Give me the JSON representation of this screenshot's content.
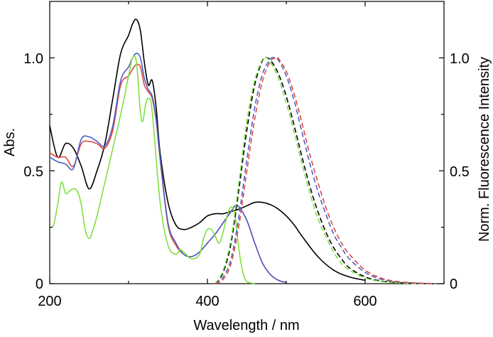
{
  "chart_data": {
    "type": "line",
    "title": "",
    "xlabel": "Wavelength / nm",
    "ylabel_left": "Abs.",
    "ylabel_right": "Norm. Fluorescence Intensity",
    "xlim": [
      200,
      700
    ],
    "ylim_left": [
      0,
      1.25
    ],
    "ylim_right": [
      0,
      1.25
    ],
    "x_ticks": [
      200,
      400,
      600
    ],
    "x_tick_labels": [
      "200",
      "400",
      "600"
    ],
    "y_left_ticks": [
      0,
      0.5,
      1.0
    ],
    "y_left_tick_labels": [
      "0",
      "0.5",
      "1.0"
    ],
    "y_right_ticks": [
      0,
      0.5,
      1.0
    ],
    "y_right_tick_labels": [
      "0",
      "0.5",
      "1.0"
    ],
    "series": [
      {
        "name": "absorption-black",
        "axis": "left",
        "color": "#000000",
        "dash": "solid",
        "x": [
          200,
          210,
          220,
          230,
          240,
          250,
          260,
          270,
          280,
          290,
          300,
          305,
          310,
          315,
          320,
          325,
          330,
          335,
          340,
          350,
          360,
          370,
          380,
          390,
          400,
          410,
          420,
          430,
          440,
          450,
          460,
          470,
          480,
          490,
          500,
          510,
          520,
          540,
          560,
          580,
          600
        ],
        "values": [
          0.7,
          0.56,
          0.62,
          0.6,
          0.52,
          0.42,
          0.5,
          0.62,
          0.82,
          1.02,
          1.1,
          1.15,
          1.17,
          1.12,
          0.98,
          0.88,
          0.9,
          0.78,
          0.58,
          0.36,
          0.26,
          0.24,
          0.25,
          0.27,
          0.3,
          0.31,
          0.31,
          0.32,
          0.33,
          0.345,
          0.36,
          0.36,
          0.35,
          0.33,
          0.3,
          0.26,
          0.21,
          0.12,
          0.06,
          0.03,
          0.015
        ]
      },
      {
        "name": "absorption-red",
        "axis": "left",
        "color": "#e0463a",
        "dash": "solid",
        "x": [
          200,
          210,
          220,
          230,
          240,
          250,
          260,
          270,
          280,
          290,
          300,
          305,
          310,
          315,
          320,
          325,
          330,
          335,
          340,
          350,
          360,
          370,
          380,
          390,
          400,
          410,
          420,
          430,
          435,
          440,
          450,
          460,
          470,
          480,
          490,
          500
        ],
        "values": [
          0.58,
          0.56,
          0.56,
          0.52,
          0.62,
          0.63,
          0.62,
          0.6,
          0.68,
          0.88,
          0.92,
          0.95,
          0.97,
          0.96,
          0.88,
          0.85,
          0.82,
          0.72,
          0.55,
          0.26,
          0.17,
          0.13,
          0.12,
          0.14,
          0.18,
          0.22,
          0.27,
          0.32,
          0.345,
          0.34,
          0.28,
          0.18,
          0.09,
          0.04,
          0.015,
          0.005
        ]
      },
      {
        "name": "absorption-blue",
        "axis": "left",
        "color": "#4a5fc8",
        "dash": "solid",
        "x": [
          200,
          210,
          220,
          230,
          240,
          250,
          260,
          270,
          280,
          290,
          300,
          305,
          310,
          315,
          320,
          325,
          330,
          335,
          340,
          350,
          360,
          370,
          380,
          390,
          400,
          410,
          420,
          430,
          435,
          440,
          450,
          460,
          470,
          480,
          490,
          500
        ],
        "values": [
          0.56,
          0.54,
          0.53,
          0.51,
          0.64,
          0.65,
          0.63,
          0.61,
          0.7,
          0.9,
          0.96,
          1.0,
          1.02,
          1.0,
          0.91,
          0.86,
          0.83,
          0.73,
          0.56,
          0.27,
          0.18,
          0.13,
          0.12,
          0.14,
          0.18,
          0.22,
          0.27,
          0.32,
          0.345,
          0.34,
          0.28,
          0.18,
          0.09,
          0.04,
          0.015,
          0.005
        ]
      },
      {
        "name": "absorption-green",
        "axis": "left",
        "color": "#7ee040",
        "dash": "solid",
        "x": [
          200,
          205,
          210,
          215,
          220,
          225,
          230,
          235,
          240,
          245,
          250,
          255,
          260,
          270,
          280,
          290,
          300,
          305,
          310,
          315,
          318,
          322,
          326,
          330,
          340,
          350,
          360,
          365,
          370,
          380,
          390,
          395,
          400,
          405,
          410,
          415,
          420,
          425,
          430,
          435,
          440,
          445,
          450,
          460
        ],
        "values": [
          0.25,
          0.26,
          0.35,
          0.45,
          0.4,
          0.41,
          0.42,
          0.41,
          0.35,
          0.24,
          0.2,
          0.24,
          0.3,
          0.45,
          0.6,
          0.75,
          0.92,
          1.0,
          0.98,
          0.76,
          0.72,
          0.8,
          0.82,
          0.76,
          0.36,
          0.17,
          0.13,
          0.15,
          0.14,
          0.11,
          0.13,
          0.2,
          0.24,
          0.24,
          0.21,
          0.18,
          0.23,
          0.3,
          0.34,
          0.3,
          0.15,
          0.05,
          0.01,
          0.0
        ]
      },
      {
        "name": "fluorescence-black",
        "axis": "right",
        "color": "#000000",
        "dash": "dashed",
        "x": [
          410,
          420,
          430,
          440,
          450,
          460,
          470,
          475,
          480,
          490,
          500,
          510,
          520,
          530,
          540,
          550,
          560,
          570,
          580,
          600,
          620,
          640,
          660,
          680,
          690
        ],
        "values": [
          0.0,
          0.05,
          0.18,
          0.42,
          0.68,
          0.88,
          0.99,
          1.0,
          0.99,
          0.93,
          0.83,
          0.7,
          0.56,
          0.43,
          0.32,
          0.23,
          0.16,
          0.11,
          0.07,
          0.03,
          0.012,
          0.005,
          0.002,
          0.0,
          0.0
        ]
      },
      {
        "name": "fluorescence-green",
        "axis": "right",
        "color": "#7ee040",
        "dash": "dashed",
        "x": [
          410,
          420,
          430,
          440,
          450,
          460,
          470,
          475,
          480,
          490,
          500,
          510,
          520,
          530,
          540,
          550,
          560,
          570,
          580,
          600,
          620,
          640,
          660,
          680,
          690
        ],
        "values": [
          0.0,
          0.06,
          0.2,
          0.45,
          0.72,
          0.9,
          0.995,
          1.0,
          0.98,
          0.91,
          0.8,
          0.67,
          0.53,
          0.4,
          0.29,
          0.21,
          0.14,
          0.09,
          0.06,
          0.025,
          0.01,
          0.004,
          0.001,
          0.0,
          0.0
        ]
      },
      {
        "name": "fluorescence-blue",
        "axis": "right",
        "color": "#4a5fc8",
        "dash": "dashed",
        "x": [
          410,
          420,
          430,
          440,
          450,
          460,
          470,
          480,
          485,
          490,
          500,
          510,
          520,
          530,
          540,
          550,
          560,
          570,
          580,
          600,
          620,
          640,
          660,
          680,
          690
        ],
        "values": [
          0.0,
          0.03,
          0.11,
          0.3,
          0.55,
          0.78,
          0.93,
          0.995,
          1.0,
          0.99,
          0.92,
          0.81,
          0.67,
          0.53,
          0.41,
          0.31,
          0.22,
          0.16,
          0.11,
          0.05,
          0.02,
          0.008,
          0.003,
          0.001,
          0.0
        ]
      },
      {
        "name": "fluorescence-red",
        "axis": "right",
        "color": "#e0463a",
        "dash": "dashed",
        "x": [
          410,
          420,
          430,
          440,
          450,
          460,
          470,
          480,
          488,
          490,
          500,
          510,
          520,
          530,
          540,
          550,
          560,
          570,
          580,
          600,
          620,
          640,
          660,
          680,
          690
        ],
        "values": [
          0.0,
          0.02,
          0.09,
          0.26,
          0.5,
          0.73,
          0.9,
          0.985,
          1.0,
          0.998,
          0.94,
          0.84,
          0.71,
          0.57,
          0.45,
          0.34,
          0.25,
          0.18,
          0.13,
          0.06,
          0.025,
          0.01,
          0.004,
          0.001,
          0.0
        ]
      }
    ]
  }
}
